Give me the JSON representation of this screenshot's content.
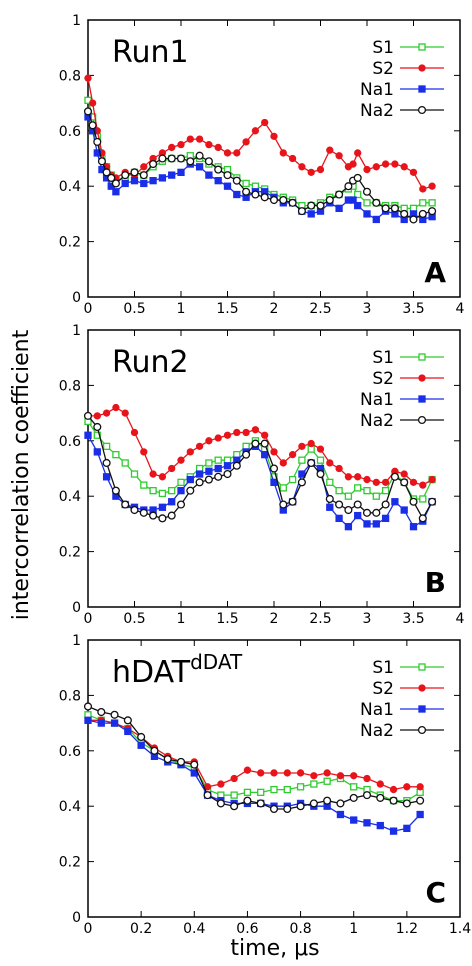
{
  "ylabel": "intercorrelation coefficient",
  "xlabel": "time, μs",
  "series_styles": [
    {
      "name": "S1",
      "color": "#2ecc2e",
      "marker": "square-open"
    },
    {
      "name": "S2",
      "color": "#e8141b",
      "marker": "circle-filled"
    },
    {
      "name": "Na1",
      "color": "#1a2ee8",
      "marker": "square-filled"
    },
    {
      "name": "Na2",
      "color": "#111111",
      "marker": "circle-open"
    }
  ],
  "chart_data": [
    {
      "type": "line",
      "title": "Run1",
      "panel_label": "A",
      "xlim": [
        0,
        4
      ],
      "ylim": [
        0,
        1
      ],
      "xticks": [
        "0",
        "0.5",
        "1",
        "1.5",
        "2",
        "2.5",
        "3",
        "3.5",
        "4"
      ],
      "xtick_values": [
        0,
        0.5,
        1,
        1.5,
        2,
        2.5,
        3,
        3.5,
        4
      ],
      "yticks": [
        "0",
        "0.2",
        "0.4",
        "0.6",
        "0.8",
        "1"
      ],
      "ytick_values": [
        0,
        0.2,
        0.4,
        0.6,
        0.8,
        1
      ],
      "x": [
        0,
        0.05,
        0.1,
        0.15,
        0.2,
        0.25,
        0.3,
        0.4,
        0.5,
        0.6,
        0.7,
        0.8,
        0.9,
        1.0,
        1.1,
        1.2,
        1.3,
        1.4,
        1.5,
        1.6,
        1.7,
        1.8,
        1.9,
        2.0,
        2.1,
        2.2,
        2.3,
        2.4,
        2.5,
        2.6,
        2.7,
        2.8,
        2.85,
        2.9,
        3.0,
        3.1,
        3.2,
        3.3,
        3.4,
        3.5,
        3.6,
        3.7
      ],
      "series": [
        {
          "name": "S1",
          "values": [
            0.71,
            0.65,
            0.58,
            0.5,
            0.47,
            0.44,
            0.42,
            0.43,
            0.45,
            0.44,
            0.47,
            0.49,
            0.5,
            0.5,
            0.51,
            0.5,
            0.48,
            0.47,
            0.46,
            0.43,
            0.41,
            0.4,
            0.39,
            0.37,
            0.36,
            0.35,
            0.33,
            0.33,
            0.34,
            0.36,
            0.37,
            0.39,
            0.4,
            0.37,
            0.34,
            0.34,
            0.33,
            0.33,
            0.32,
            0.32,
            0.34,
            0.34
          ]
        },
        {
          "name": "S2",
          "values": [
            0.79,
            0.7,
            0.6,
            0.52,
            0.47,
            0.44,
            0.43,
            0.45,
            0.44,
            0.47,
            0.5,
            0.52,
            0.54,
            0.55,
            0.57,
            0.57,
            0.55,
            0.54,
            0.52,
            0.52,
            0.56,
            0.6,
            0.63,
            0.58,
            0.52,
            0.5,
            0.47,
            0.45,
            0.46,
            0.53,
            0.51,
            0.47,
            0.48,
            0.52,
            0.46,
            0.47,
            0.48,
            0.48,
            0.47,
            0.45,
            0.39,
            0.4
          ]
        },
        {
          "name": "Na1",
          "values": [
            0.65,
            0.6,
            0.52,
            0.46,
            0.43,
            0.4,
            0.38,
            0.41,
            0.42,
            0.41,
            0.42,
            0.43,
            0.44,
            0.45,
            0.48,
            0.47,
            0.44,
            0.42,
            0.4,
            0.37,
            0.36,
            0.38,
            0.38,
            0.36,
            0.34,
            0.34,
            0.31,
            0.3,
            0.31,
            0.34,
            0.32,
            0.35,
            0.35,
            0.33,
            0.3,
            0.28,
            0.31,
            0.3,
            0.28,
            0.3,
            0.28,
            0.29
          ]
        },
        {
          "name": "Na2",
          "values": [
            0.67,
            0.62,
            0.56,
            0.49,
            0.45,
            0.43,
            0.41,
            0.44,
            0.45,
            0.44,
            0.48,
            0.5,
            0.5,
            0.5,
            0.49,
            0.51,
            0.49,
            0.46,
            0.44,
            0.42,
            0.38,
            0.37,
            0.36,
            0.35,
            0.35,
            0.34,
            0.31,
            0.33,
            0.33,
            0.35,
            0.37,
            0.4,
            0.42,
            0.43,
            0.38,
            0.34,
            0.32,
            0.32,
            0.3,
            0.28,
            0.3,
            0.31
          ]
        }
      ]
    },
    {
      "type": "line",
      "title": "Run2",
      "panel_label": "B",
      "xlim": [
        0,
        4
      ],
      "ylim": [
        0,
        1
      ],
      "xticks": [
        "0",
        "0.5",
        "1",
        "1.5",
        "2",
        "2.5",
        "3",
        "3.5",
        "4"
      ],
      "xtick_values": [
        0,
        0.5,
        1,
        1.5,
        2,
        2.5,
        3,
        3.5,
        4
      ],
      "yticks": [
        "0",
        "0.2",
        "0.4",
        "0.6",
        "0.8",
        "1"
      ],
      "ytick_values": [
        0,
        0.2,
        0.4,
        0.6,
        0.8,
        1
      ],
      "x": [
        0,
        0.1,
        0.2,
        0.3,
        0.4,
        0.5,
        0.6,
        0.7,
        0.8,
        0.9,
        1.0,
        1.1,
        1.2,
        1.3,
        1.4,
        1.5,
        1.6,
        1.7,
        1.8,
        1.9,
        2.0,
        2.1,
        2.2,
        2.3,
        2.4,
        2.5,
        2.6,
        2.7,
        2.8,
        2.9,
        3.0,
        3.1,
        3.2,
        3.3,
        3.4,
        3.5,
        3.6,
        3.7
      ],
      "series": [
        {
          "name": "S1",
          "values": [
            0.67,
            0.62,
            0.58,
            0.55,
            0.52,
            0.48,
            0.44,
            0.42,
            0.41,
            0.42,
            0.45,
            0.47,
            0.5,
            0.52,
            0.53,
            0.53,
            0.55,
            0.58,
            0.6,
            0.57,
            0.47,
            0.43,
            0.46,
            0.53,
            0.57,
            0.53,
            0.45,
            0.42,
            0.4,
            0.43,
            0.42,
            0.4,
            0.42,
            0.48,
            0.45,
            0.39,
            0.39,
            0.46
          ]
        },
        {
          "name": "S2",
          "values": [
            0.69,
            0.69,
            0.7,
            0.72,
            0.7,
            0.63,
            0.56,
            0.48,
            0.47,
            0.5,
            0.53,
            0.56,
            0.58,
            0.6,
            0.61,
            0.62,
            0.63,
            0.63,
            0.64,
            0.62,
            0.56,
            0.52,
            0.55,
            0.58,
            0.59,
            0.57,
            0.52,
            0.5,
            0.47,
            0.47,
            0.46,
            0.45,
            0.45,
            0.49,
            0.48,
            0.45,
            0.44,
            0.46
          ]
        },
        {
          "name": "Na1",
          "values": [
            0.62,
            0.56,
            0.47,
            0.4,
            0.37,
            0.36,
            0.35,
            0.35,
            0.36,
            0.38,
            0.42,
            0.46,
            0.48,
            0.49,
            0.5,
            0.51,
            0.53,
            0.56,
            0.58,
            0.55,
            0.45,
            0.35,
            0.38,
            0.48,
            0.52,
            0.5,
            0.36,
            0.32,
            0.29,
            0.33,
            0.3,
            0.3,
            0.32,
            0.38,
            0.35,
            0.29,
            0.31,
            0.38
          ]
        },
        {
          "name": "Na2",
          "values": [
            0.69,
            0.65,
            0.52,
            0.42,
            0.37,
            0.35,
            0.34,
            0.33,
            0.32,
            0.33,
            0.37,
            0.42,
            0.45,
            0.46,
            0.47,
            0.48,
            0.51,
            0.55,
            0.59,
            0.59,
            0.5,
            0.37,
            0.38,
            0.45,
            0.52,
            0.48,
            0.39,
            0.37,
            0.35,
            0.37,
            0.34,
            0.34,
            0.37,
            0.47,
            0.45,
            0.38,
            0.32,
            0.38
          ]
        }
      ]
    },
    {
      "type": "line",
      "title": "hDAT",
      "title_superscript": "dDAT",
      "panel_label": "C",
      "xlim": [
        0,
        1.4
      ],
      "ylim": [
        0,
        1
      ],
      "xticks": [
        "0",
        "0.2",
        "0.4",
        "0.6",
        "0.8",
        "1",
        "1.2",
        "1.4"
      ],
      "xtick_values": [
        0,
        0.2,
        0.4,
        0.6,
        0.8,
        1,
        1.2,
        1.4
      ],
      "yticks": [
        "0",
        "0.2",
        "0.4",
        "0.6",
        "0.8",
        "1"
      ],
      "ytick_values": [
        0,
        0.2,
        0.4,
        0.6,
        0.8,
        1
      ],
      "x": [
        0,
        0.05,
        0.1,
        0.15,
        0.2,
        0.25,
        0.3,
        0.35,
        0.4,
        0.45,
        0.5,
        0.55,
        0.6,
        0.65,
        0.7,
        0.75,
        0.8,
        0.85,
        0.9,
        0.95,
        1.0,
        1.05,
        1.1,
        1.15,
        1.2,
        1.25
      ],
      "series": [
        {
          "name": "S1",
          "values": [
            0.73,
            0.71,
            0.7,
            0.68,
            0.63,
            0.6,
            0.57,
            0.55,
            0.54,
            0.46,
            0.44,
            0.44,
            0.45,
            0.45,
            0.46,
            0.46,
            0.47,
            0.48,
            0.49,
            0.5,
            0.47,
            0.46,
            0.44,
            0.42,
            0.42,
            0.45
          ]
        },
        {
          "name": "S2",
          "values": [
            0.71,
            0.71,
            0.7,
            0.68,
            0.65,
            0.61,
            0.58,
            0.56,
            0.56,
            0.47,
            0.48,
            0.5,
            0.53,
            0.52,
            0.52,
            0.52,
            0.52,
            0.51,
            0.52,
            0.51,
            0.51,
            0.5,
            0.48,
            0.46,
            0.47,
            0.47
          ]
        },
        {
          "name": "Na1",
          "values": [
            0.71,
            0.7,
            0.7,
            0.67,
            0.62,
            0.58,
            0.56,
            0.55,
            0.52,
            0.44,
            0.42,
            0.41,
            0.41,
            0.41,
            0.4,
            0.4,
            0.41,
            0.4,
            0.4,
            0.37,
            0.35,
            0.34,
            0.33,
            0.31,
            0.32,
            0.37
          ]
        },
        {
          "name": "Na2",
          "values": [
            0.76,
            0.74,
            0.73,
            0.71,
            0.65,
            0.6,
            0.57,
            0.56,
            0.55,
            0.44,
            0.41,
            0.4,
            0.42,
            0.41,
            0.39,
            0.39,
            0.4,
            0.41,
            0.42,
            0.41,
            0.43,
            0.44,
            0.43,
            0.42,
            0.41,
            0.42
          ]
        }
      ]
    }
  ]
}
